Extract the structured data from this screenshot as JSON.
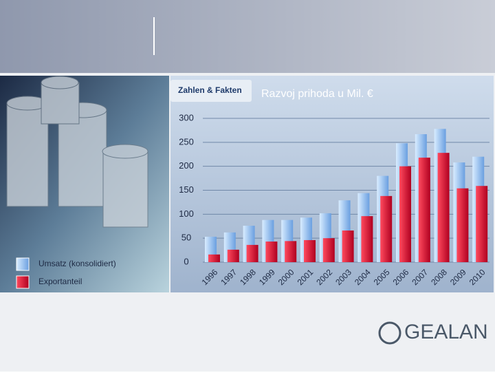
{
  "tab_label": "Zahlen & Fakten",
  "logo": "GEALAN",
  "chart_data": {
    "type": "bar",
    "title": "Razvoj prihoda u Mil. €",
    "categories": [
      "1996",
      "1997",
      "1998",
      "1999",
      "2000",
      "2001",
      "2002",
      "2003",
      "2004",
      "2005",
      "2006",
      "2007",
      "2008",
      "2009",
      "2010"
    ],
    "series": [
      {
        "name": "Umsatz (konsolidiert)",
        "color": "#8fbdf0",
        "values": [
          53,
          62,
          76,
          88,
          88,
          93,
          102,
          129,
          144,
          180,
          248,
          267,
          278,
          208,
          220
        ]
      },
      {
        "name": "Exportanteil",
        "color": "#e01030",
        "values": [
          16,
          26,
          36,
          43,
          44,
          46,
          50,
          66,
          96,
          138,
          200,
          218,
          228,
          154,
          159
        ]
      }
    ],
    "ylim": [
      0,
      300
    ],
    "yticks": [
      0,
      50,
      100,
      150,
      200,
      250,
      300
    ],
    "grid": true
  }
}
